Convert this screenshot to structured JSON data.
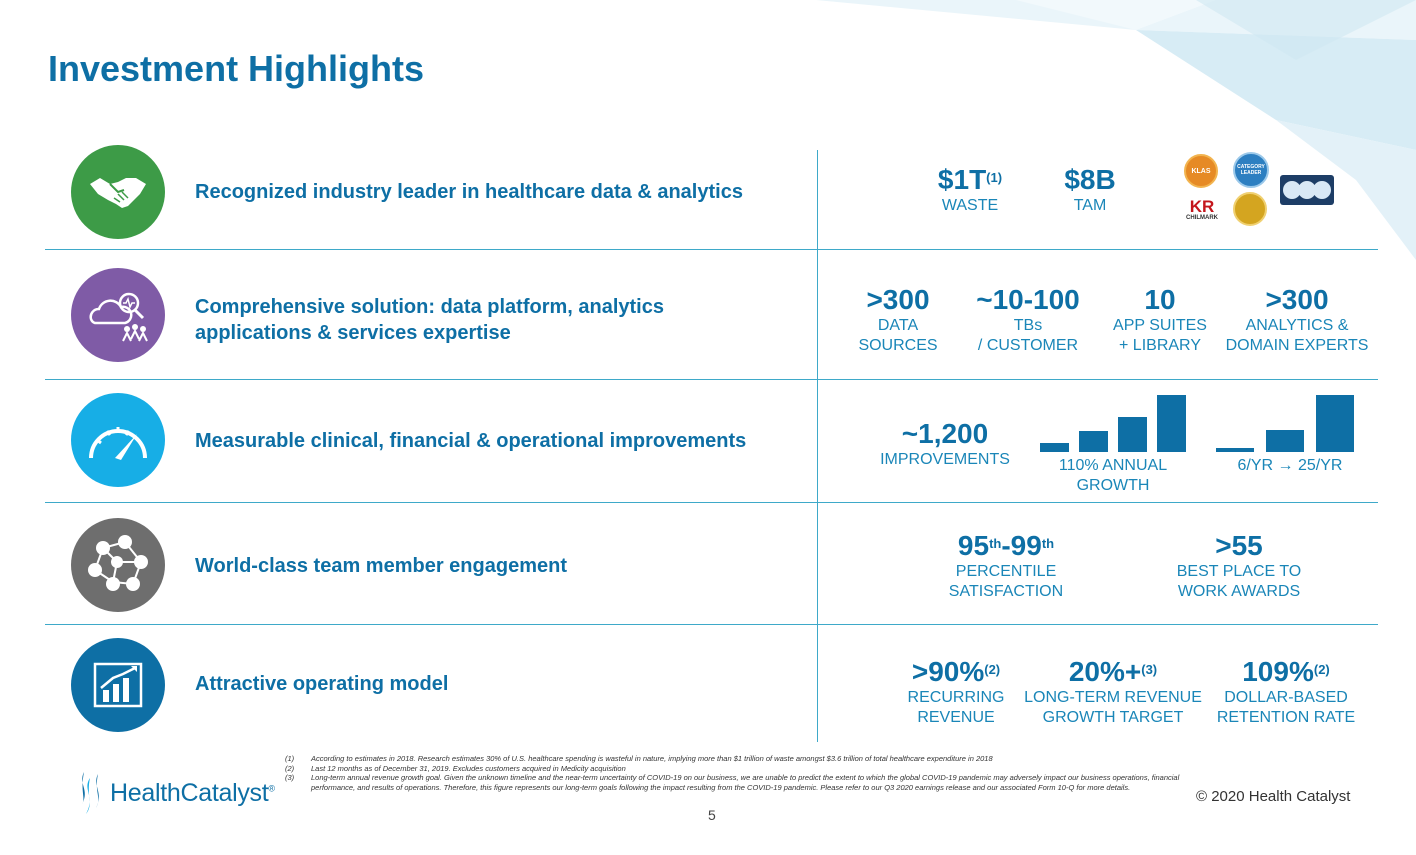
{
  "title": "Investment Highlights",
  "colors": {
    "accent": "#0e6fa5",
    "rule": "#3ea9c9",
    "green": "#3d9b47",
    "purple": "#7f5ba6",
    "cyan": "#17aee6",
    "gray": "#6e6e6e",
    "navy": "#0e6fa5"
  },
  "rows": [
    {
      "icon": "handshake-icon",
      "label": "Recognized industry leader in healthcare data & analytics",
      "stats": [
        {
          "value": "$1T",
          "sup": "(1)",
          "caption": "WASTE"
        },
        {
          "value": "$8B",
          "caption": "TAM"
        }
      ],
      "awards": [
        {
          "icon": "klas-award-icon",
          "text": "KLAS"
        },
        {
          "icon": "category-leader-award-icon",
          "text": "CATEGORY LEADER"
        },
        {
          "icon": "chilmark-research-logo",
          "text": "CHILMARK"
        },
        {
          "icon": "gold-award-icon",
          "text": ""
        },
        {
          "icon": "best-in-klas-badge-icon",
          "text": ""
        }
      ]
    },
    {
      "icon": "cloud-analytics-icon",
      "label_lines": [
        "Comprehensive solution: data platform, analytics",
        "applications & services expertise"
      ],
      "stats": [
        {
          "value": ">300",
          "caption_lines": [
            "DATA",
            "SOURCES"
          ]
        },
        {
          "value": "~10-100",
          "caption_lines": [
            "TBs",
            "/ CUSTOMER"
          ]
        },
        {
          "value": "10",
          "caption_lines": [
            "APP SUITES",
            "+ LIBRARY"
          ]
        },
        {
          "value": ">300",
          "caption_lines": [
            "ANALYTICS &",
            "DOMAIN EXPERTS"
          ]
        }
      ]
    },
    {
      "icon": "speedometer-icon",
      "label": "Measurable clinical, financial & operational improvements",
      "stats": [
        {
          "value": "~1,200",
          "caption": "IMPROVEMENTS"
        }
      ],
      "bar_groups": [
        {
          "caption_lines": [
            "110% ANNUAL",
            "GROWTH"
          ],
          "values": [
            0.15,
            0.37,
            0.62,
            1.0
          ]
        },
        {
          "caption": "6/YR → 25/YR",
          "values": [
            0.07,
            0.38,
            1.0
          ]
        }
      ]
    },
    {
      "icon": "team-network-icon",
      "label": "World-class team member engagement",
      "stats": [
        {
          "value_a": "95",
          "sup_a": "th",
          "value_b": "-99",
          "sup_b": "th",
          "caption_lines": [
            "PERCENTILE",
            "SATISFACTION"
          ]
        },
        {
          "value": ">55",
          "caption_lines": [
            "BEST PLACE TO",
            "WORK AWARDS"
          ]
        }
      ]
    },
    {
      "icon": "bar-chart-growth-icon",
      "label": "Attractive operating model",
      "stats": [
        {
          "value": ">90%",
          "sup": "(2)",
          "caption_lines": [
            "RECURRING",
            "REVENUE"
          ]
        },
        {
          "value": "20%+",
          "sup": "(3)",
          "caption_lines": [
            "LONG-TERM REVENUE",
            "GROWTH TARGET"
          ]
        },
        {
          "value": "109%",
          "sup": "(2)",
          "caption_lines": [
            "DOLLAR-BASED",
            "RETENTION RATE"
          ]
        }
      ]
    }
  ],
  "footnotes": [
    {
      "num": "(1)",
      "text": "According to estimates in 2018. Research estimates 30% of U.S. healthcare spending is wasteful in nature, implying more than $1 trillion of waste amongst $3.6 trillion of total healthcare expenditure in 2018"
    },
    {
      "num": "(2)",
      "text": "Last 12 months as of December 31, 2019. Excludes customers acquired in Medicity acquisition"
    },
    {
      "num": "(3)",
      "text": "Long-term annual revenue growth goal. Given the unknown timeline and the near-term uncertainty of COVID-19 on our business, we are unable to predict the extent to which the global COVID-19 pandemic may adversely impact our business operations, financial performance, and results of operations. Therefore, this figure represents our long-term goals following the impact resulting from the COVID-19 pandemic. Please refer to our Q3 2020 earnings release and our associated Form 10-Q for more details."
    }
  ],
  "logo": {
    "text": "HealthCatalyst",
    "mark": "®"
  },
  "page_number": "5",
  "copyright": "© 2020 Health Catalyst"
}
